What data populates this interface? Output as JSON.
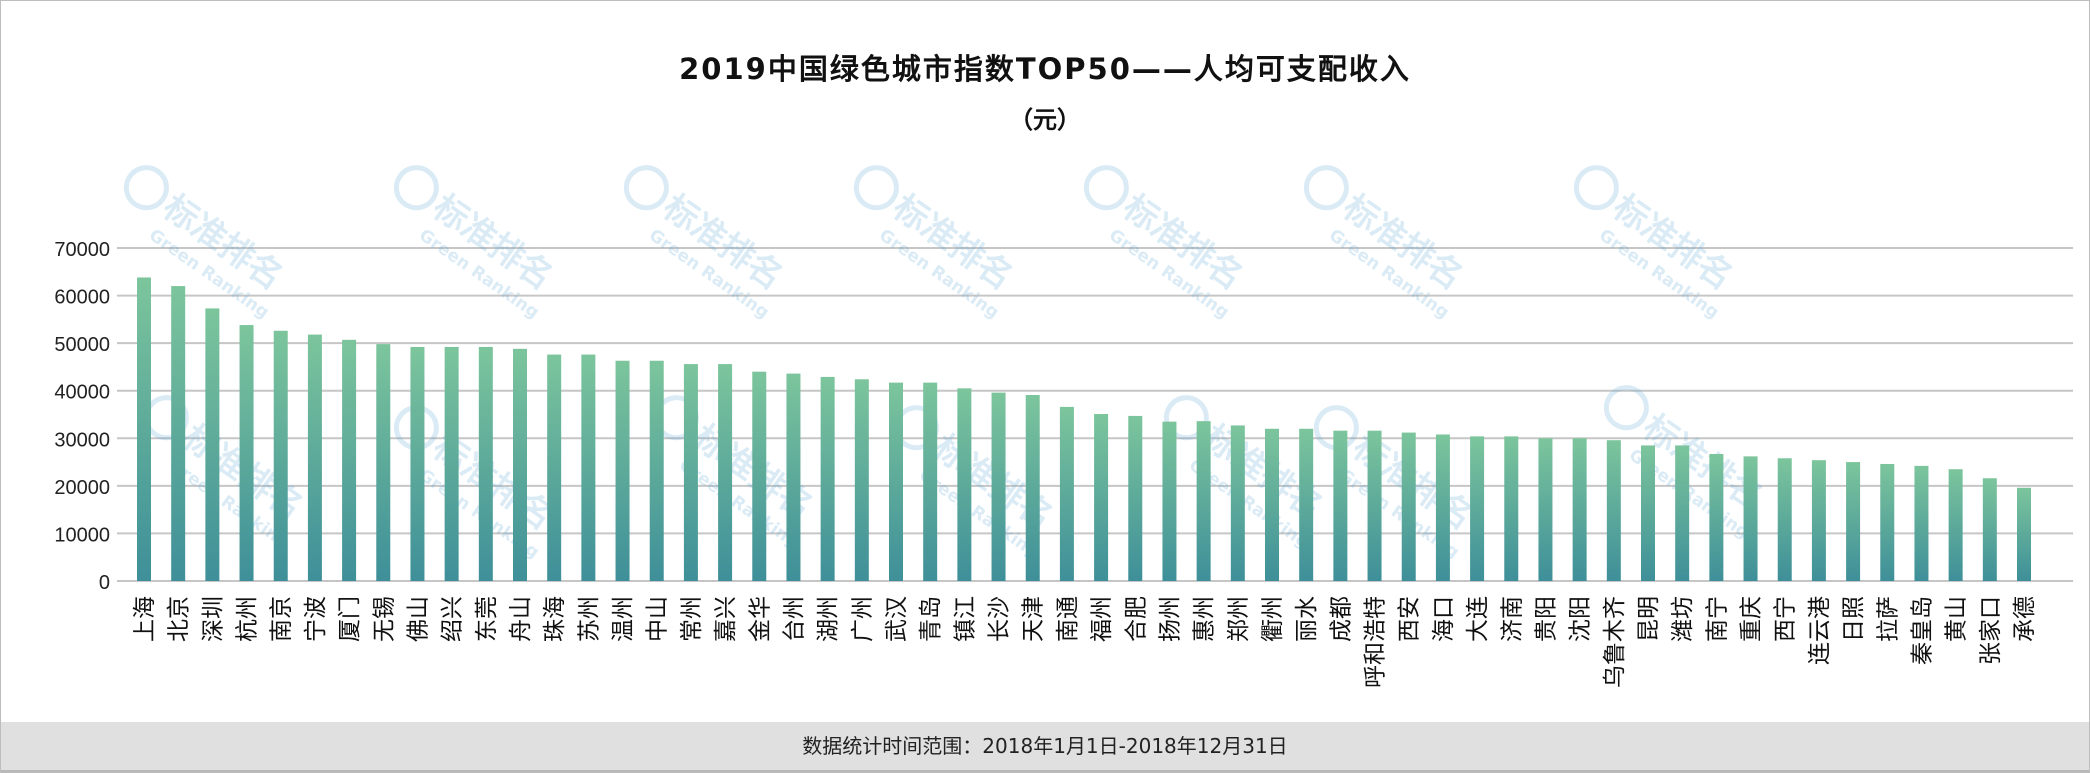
{
  "chart_data": {
    "type": "bar",
    "title": "2019中国绿色城市指数TOP50——人均可支配收入",
    "subtitle": "（元）",
    "xlabel": "",
    "ylabel": "",
    "ylim": [
      0,
      70000
    ],
    "yticks": [
      "0",
      "10000",
      "20000",
      "30000",
      "40000",
      "50000",
      "60000",
      "70000"
    ],
    "grid": true,
    "categories": [
      "上海",
      "北京",
      "深圳",
      "杭州",
      "南京",
      "宁波",
      "厦门",
      "无锡",
      "佛山",
      "绍兴",
      "东莞",
      "舟山",
      "珠海",
      "苏州",
      "温州",
      "中山",
      "常州",
      "嘉兴",
      "金华",
      "台州",
      "湖州",
      "广州",
      "武汉",
      "青岛",
      "镇江",
      "长沙",
      "天津",
      "南通",
      "福州",
      "合肥",
      "扬州",
      "惠州",
      "郑州",
      "衢州",
      "丽水",
      "成都",
      "呼和浩特",
      "西安",
      "海口",
      "大连",
      "济南",
      "贵阳",
      "沈阳",
      "乌鲁木齐",
      "昆明",
      "潍坊",
      "南宁",
      "重庆",
      "西宁",
      "连云港",
      "日照",
      "拉萨",
      "秦皇岛",
      "黄山",
      "张家口",
      "承德"
    ],
    "values": [
      63800,
      62000,
      57300,
      53800,
      52600,
      51800,
      50700,
      49800,
      49200,
      49200,
      49200,
      48800,
      47600,
      47600,
      46300,
      46300,
      45600,
      45600,
      44000,
      43600,
      42900,
      42400,
      41700,
      41700,
      40500,
      39600,
      39100,
      36600,
      35100,
      34700,
      33500,
      33600,
      32700,
      32000,
      32000,
      31600,
      31600,
      31200,
      30800,
      30400,
      30400,
      30000,
      30000,
      29600,
      28500,
      28500,
      26700,
      26200,
      25800,
      25400,
      25000,
      24600,
      24200,
      23500,
      21600,
      19600
    ],
    "colors": {
      "bar_top": "#7cc59c",
      "bar_bottom": "#3e8f99",
      "grid": "#c6c6c6"
    }
  },
  "footer": "数据统计时间范围：2018年1月1日-2018年12月31日",
  "watermark": {
    "cn": "标准排名",
    "en": "Green Ranking",
    "color": "#5aa6d6"
  }
}
